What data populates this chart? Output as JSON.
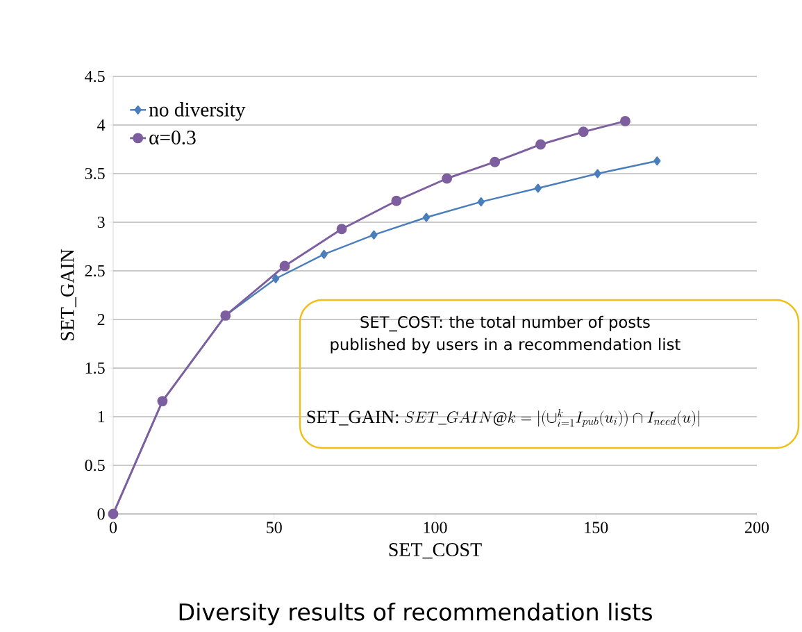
{
  "chart_data": {
    "type": "line",
    "title": "Diversity results of recommendation lists",
    "xlabel": "SET_COST",
    "ylabel": "SET_GAIN",
    "xlim": [
      0,
      200
    ],
    "ylim": [
      0,
      4.5
    ],
    "xticks": [
      0,
      50,
      100,
      150,
      200
    ],
    "yticks": [
      0,
      0.5,
      1,
      1.5,
      2,
      2.5,
      3,
      3.5,
      4,
      4.5
    ],
    "grid": "y",
    "legend": "top left",
    "line_style": "solid",
    "series": [
      {
        "name": "no diversity",
        "color": "#4a7ebb",
        "marker": "diamond",
        "x": [
          0,
          15.3,
          34.9,
          50.5,
          65.5,
          81.0,
          97.3,
          114.3,
          132.0,
          150.5,
          169.0
        ],
        "values": [
          0,
          1.16,
          2.04,
          2.42,
          2.67,
          2.87,
          3.05,
          3.21,
          3.35,
          3.5,
          3.63
        ]
      },
      {
        "name": "α=0.3",
        "color": "#7d5fa0",
        "marker": "circle",
        "x": [
          0,
          15.3,
          34.9,
          53.3,
          71.0,
          88.0,
          103.7,
          118.6,
          132.8,
          146.1,
          159.1
        ],
        "values": [
          0,
          1.16,
          2.04,
          2.55,
          2.93,
          3.22,
          3.45,
          3.62,
          3.8,
          3.93,
          4.04
        ]
      }
    ],
    "annotations": [
      "SET_COST:  the total number of posts published by users in a recommendation list",
      "SET_GAIN:",
      "SET\\_GAIN@k=|(\\cup_{i=1}^{k} I_{pub}(u_i))\\cap I_{need}(u)|"
    ]
  }
}
